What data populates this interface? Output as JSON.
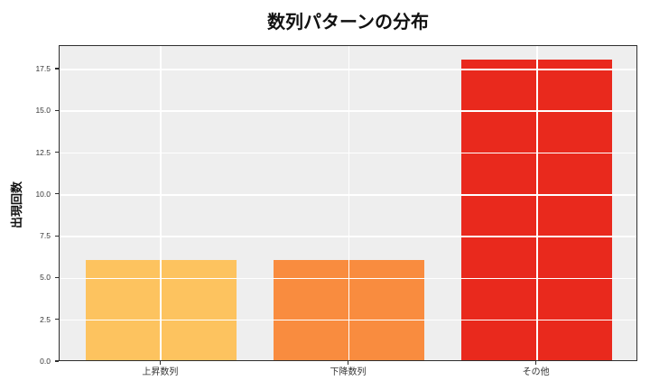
{
  "chart_data": {
    "type": "bar",
    "title": "数列パターンの分布",
    "xlabel": "",
    "ylabel": "出現回数",
    "categories": [
      "上昇数列",
      "下降数列",
      "その他"
    ],
    "values": [
      6,
      6,
      18
    ],
    "bar_colors": [
      "#FDC35F",
      "#F98C3F",
      "#E9291D"
    ],
    "ytick_labels": [
      "0.0",
      "2.5",
      "5.0",
      "7.5",
      "10.0",
      "12.5",
      "15.0",
      "17.5"
    ],
    "yticks": [
      0,
      2.5,
      5,
      7.5,
      10,
      12.5,
      15,
      17.5
    ],
    "ylim": [
      0,
      18.9
    ],
    "xlim": [
      -0.54,
      2.54
    ],
    "bar_width": 0.8,
    "grid": true,
    "grid_color": "#ffffff",
    "plot_background": "#eeeeee",
    "figure_background": "#ffffff",
    "spine_color": "#2f2f2f",
    "legend_position": "none"
  }
}
